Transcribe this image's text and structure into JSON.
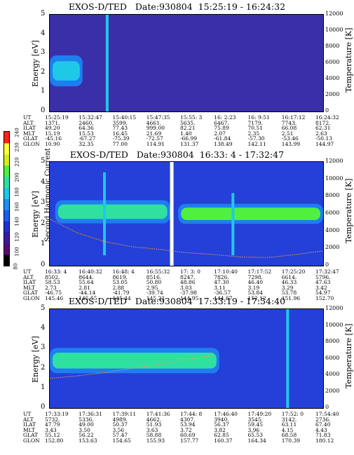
{
  "colorbar": {
    "label": "Second Harmonic Current",
    "ticks": [
      "240",
      "230",
      "220",
      "200",
      "180",
      "160",
      "140",
      "120",
      "100",
      "80"
    ],
    "colors": [
      "#000000",
      "#5a0a6e",
      "#3a1aa0",
      "#2030d0",
      "#1e5cf0",
      "#2090f0",
      "#20c8e8",
      "#30e0a0",
      "#50f040",
      "#d0f020",
      "#ffff40",
      "#ff2020"
    ]
  },
  "panels": [
    {
      "title": "EXOS-D/TED   Date:930804  15:25:19 - 16:24:32",
      "energy_axis": {
        "label": "Energy [eV]",
        "ticks": [
          "5",
          "4",
          "3",
          "2",
          "1",
          "0"
        ]
      },
      "temp_axis": {
        "label": "Temperature [K]",
        "ticks": [
          "12000",
          "10000",
          "8000",
          "6000",
          "4000",
          "2000",
          "0"
        ]
      },
      "orbit_labels": [
        "UT",
        "ALT",
        "ILAT",
        "MLT",
        "GLAT",
        "GLON"
      ],
      "orbit_columns": [
        [
          "15:25:19",
          "1371.",
          "49.20",
          "15.19",
          "-45.16",
          "10.90"
        ],
        [
          "15:32:47",
          "2460.",
          "64.36",
          "15.53",
          "-67.27",
          "32.35"
        ],
        [
          "15:40:15",
          "3599.",
          "77.43",
          "16.45",
          "-75.39",
          "77.00"
        ],
        [
          "15:47:35",
          "4661.",
          "999.00",
          "21.69",
          "-72.57",
          "114.91"
        ],
        [
          "15:55: 3",
          "5635.",
          "82.21",
          "1.40",
          "-66.99",
          "131.37"
        ],
        [
          "16: 2:23",
          "6467.",
          "75.89",
          "2.07",
          "-61.84",
          "138.49"
        ],
        [
          "16: 9:51",
          "7179.",
          "70.51",
          "2.35",
          "-57.30",
          "142.11"
        ],
        [
          "16:17:12",
          "7743.",
          "66.08",
          "2.51",
          "-53.46",
          "143.99"
        ],
        [
          "16:24:32",
          "8172.",
          "62.31",
          "2.63",
          "-50.13",
          "144.97"
        ]
      ]
    },
    {
      "title": "EXOS-D/TED   Date:930804  16:33: 4 - 17:32:47",
      "energy_axis": {
        "label": "Energy [eV]",
        "ticks": [
          "5",
          "4",
          "3",
          "2",
          "1",
          "0"
        ]
      },
      "temp_axis": {
        "label": "Temperature [K]",
        "ticks": [
          "12000",
          "10000",
          "8000",
          "6000",
          "4000",
          "2000",
          "0"
        ]
      },
      "orbit_labels": [
        "UT",
        "ALT",
        "ILAT",
        "MLT",
        "GLAT",
        "GLON"
      ],
      "orbit_columns": [
        [
          "16:33: 4",
          "8502.",
          "58.53",
          "2.73",
          "-46.75",
          "145.46"
        ],
        [
          "16:40:32",
          "8644.",
          "55.64",
          "2.81",
          "-44.14",
          "145.55"
        ],
        [
          "16:48: 4",
          "8619.",
          "53.05",
          "2.88",
          "-41.79",
          "145.44"
        ],
        [
          "16:55:32",
          "8516.",
          "50.80",
          "2.95",
          "-39.74",
          "145.22"
        ],
        [
          "17: 3: 0",
          "8247.",
          "48.86",
          "3.03",
          "-37.98",
          "144.95"
        ],
        [
          "17:10:40",
          "7826.",
          "47.30",
          "3.11",
          "-36.57",
          "144.67"
        ],
        [
          "17:17:52",
          "7298.",
          "46.40",
          "3.19",
          "53.84",
          "152.12"
        ],
        [
          "17:25:20",
          "6614.",
          "46.33",
          "3.29",
          "53.78",
          "151.96"
        ],
        [
          "17:32:47",
          "5796.",
          "47.63",
          "3.42",
          "54.97",
          "152.70"
        ]
      ]
    },
    {
      "title": "EXOS-D/TED   Date:930804  17:33:19 - 17:54:40",
      "energy_axis": {
        "label": "Energy [eV]",
        "ticks": [
          "5",
          "4",
          "3",
          "2",
          "1",
          "0"
        ]
      },
      "temp_axis": {
        "label": "Temperature [K]",
        "ticks": [
          "12000",
          "10000",
          "8000",
          "6000",
          "4000",
          "2000",
          "0"
        ]
      },
      "orbit_labels": [
        "UT",
        "ALT",
        "ILAT",
        "MLT",
        "GLAT",
        "GLON"
      ],
      "orbit_columns": [
        [
          "17:33:19",
          "5732.",
          "47.79",
          "3.43",
          "55.12",
          "152.80"
        ],
        [
          "17:36:31",
          "5336.",
          "49.00",
          "3.50",
          "56.22",
          "153.63"
        ],
        [
          "17:39:11",
          "4989.",
          "50.37",
          "3.56",
          "57.47",
          "154.65"
        ],
        [
          "17:41:36",
          "4662.",
          "51.93",
          "3.63",
          "58.88",
          "155.93"
        ],
        [
          "17:44: 8",
          "4307.",
          "53.94",
          "3.72",
          "60.69",
          "157.77"
        ],
        [
          "17:46:40",
          "3940.",
          "56.37",
          "3.82",
          "62.85",
          "160.37"
        ],
        [
          "17:49:20",
          "3545.",
          "59.45",
          "3.96",
          "65.53",
          "164.34"
        ],
        [
          "17:52: 0",
          "3142.",
          "63.11",
          "4.15",
          "68.58",
          "170.39"
        ],
        [
          "17:54:40",
          "2736.",
          "67.40",
          "4.43",
          "71.83",
          "180.12"
        ]
      ]
    }
  ],
  "chart_data": [
    {
      "type": "heatmap",
      "title": "EXOS-D/TED   Date:930804  15:25:19 - 16:24:32",
      "xlabel": "UT",
      "ylabel": "Energy [eV]",
      "y2label": "Temperature [K]",
      "ylim": [
        0,
        5
      ],
      "y2lim": [
        0,
        12000
      ],
      "x_ticks": [
        "15:25:19",
        "15:32:47",
        "15:40:15",
        "15:47:35",
        "15:55: 3",
        "16: 2:23",
        "16: 9:51",
        "16:17:12",
        "16:24:32"
      ],
      "colorbar_label": "Second Harmonic Current",
      "colorbar_range": [
        80,
        240
      ],
      "features": [
        {
          "kind": "band",
          "x_frac": [
            0.0,
            0.12
          ],
          "energy_center": 2.1,
          "energy_halfwidth": 0.5,
          "level": 170
        },
        {
          "kind": "spike",
          "x_frac": 0.21,
          "energy": [
            0,
            5
          ],
          "level": 170
        }
      ],
      "temperature_trace": []
    },
    {
      "type": "heatmap",
      "title": "EXOS-D/TED   Date:930804  16:33: 4 - 17:32:47",
      "xlabel": "UT",
      "ylabel": "Energy [eV]",
      "y2label": "Temperature [K]",
      "ylim": [
        0,
        5
      ],
      "y2lim": [
        0,
        12000
      ],
      "x_ticks": [
        "16:33: 4",
        "16:40:32",
        "16:48: 4",
        "16:55:32",
        "17: 3: 0",
        "17:10:40",
        "17:17:52",
        "17:25:20",
        "17:32:47"
      ],
      "colorbar_label": "Second Harmonic Current",
      "colorbar_range": [
        80,
        240
      ],
      "features": [
        {
          "kind": "band",
          "x_frac": [
            0.02,
            0.44
          ],
          "energy_center": 2.6,
          "energy_halfwidth": 0.35,
          "level": 190
        },
        {
          "kind": "band",
          "x_frac": [
            0.47,
            1.0
          ],
          "energy_center": 2.5,
          "energy_halfwidth": 0.3,
          "level": 200
        },
        {
          "kind": "gap",
          "x_frac": 0.445
        },
        {
          "kind": "spike",
          "x_frac": 0.2,
          "energy": [
            0.5,
            4.5
          ],
          "level": 170
        },
        {
          "kind": "spike",
          "x_frac": 0.67,
          "energy": [
            0.5,
            3.5
          ],
          "level": 170
        }
      ],
      "temperature_trace": [
        [
          0.0,
          5400
        ],
        [
          0.1,
          3800
        ],
        [
          0.2,
          2800
        ],
        [
          0.3,
          2200
        ],
        [
          0.4,
          1900
        ],
        [
          0.5,
          1500
        ],
        [
          0.6,
          1300
        ],
        [
          0.7,
          1000
        ],
        [
          0.8,
          950
        ],
        [
          0.9,
          1300
        ],
        [
          1.0,
          1700
        ]
      ]
    },
    {
      "type": "heatmap",
      "title": "EXOS-D/TED   Date:930804  17:33:19 - 17:54:40",
      "xlabel": "UT",
      "ylabel": "Energy [eV]",
      "y2label": "Temperature [K]",
      "ylim": [
        0,
        5
      ],
      "y2lim": [
        0,
        12000
      ],
      "x_ticks": [
        "17:33:19",
        "17:36:31",
        "17:39:11",
        "17:41:36",
        "17:44: 8",
        "17:46:40",
        "17:49:20",
        "17:52: 0",
        "17:54:40"
      ],
      "colorbar_label": "Second Harmonic Current",
      "colorbar_range": [
        80,
        240
      ],
      "features": [
        {
          "kind": "band",
          "x_frac": [
            0.0,
            0.62
          ],
          "energy_center": 2.4,
          "energy_halfwidth": 0.4,
          "level": 190
        },
        {
          "kind": "spike",
          "x_frac": 0.87,
          "energy": [
            0,
            5
          ],
          "level": 170
        }
      ],
      "temperature_trace": [
        [
          0.0,
          3600
        ],
        [
          0.1,
          3900
        ],
        [
          0.2,
          4300
        ],
        [
          0.3,
          4800
        ],
        [
          0.4,
          5300
        ],
        [
          0.5,
          5900
        ],
        [
          0.6,
          6400
        ]
      ]
    }
  ]
}
